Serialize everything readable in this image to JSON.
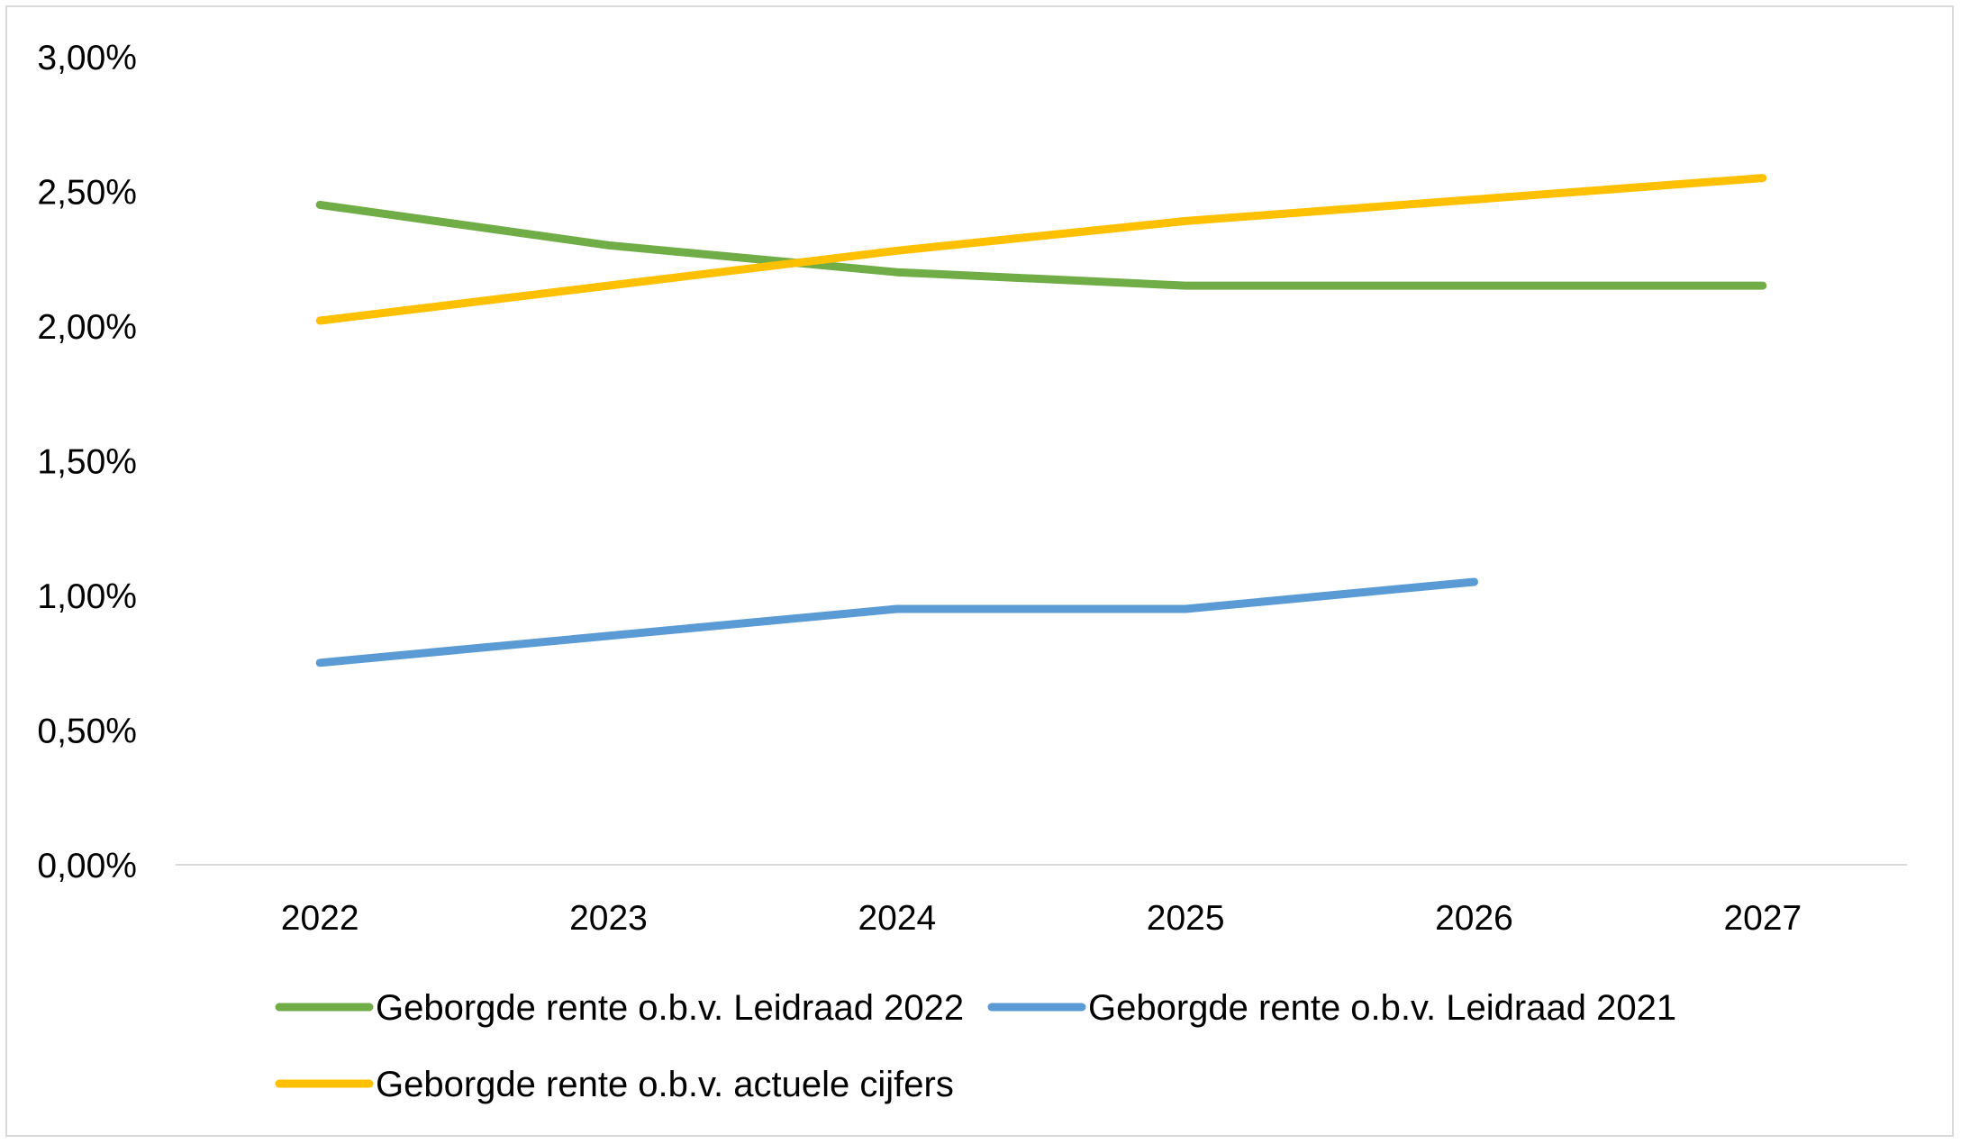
{
  "chart_data": {
    "type": "line",
    "title": "",
    "xlabel": "",
    "ylabel": "",
    "categories": [
      "2022",
      "2023",
      "2024",
      "2025",
      "2026",
      "2027"
    ],
    "ylim": [
      0,
      3.0
    ],
    "y_ticks": [
      0,
      0.5,
      1.0,
      1.5,
      2.0,
      2.5,
      3.0
    ],
    "y_tick_labels": [
      "0,00%",
      "0,50%",
      "1,00%",
      "1,50%",
      "2,00%",
      "2,50%",
      "3,00%"
    ],
    "grid": false,
    "legend_position": "bottom",
    "series": [
      {
        "name": "Geborgde rente o.b.v. Leidraad 2022",
        "color": "#70ad47",
        "values": [
          2.45,
          2.3,
          2.2,
          2.15,
          2.15,
          2.15
        ]
      },
      {
        "name": "Geborgde rente o.b.v. Leidraad 2021",
        "color": "#5b9bd5",
        "values": [
          0.75,
          0.85,
          0.95,
          0.95,
          1.05,
          null
        ]
      },
      {
        "name": "Geborgde rente o.b.v. actuele cijfers",
        "color": "#ffc000",
        "values": [
          2.02,
          2.15,
          2.28,
          2.39,
          2.47,
          2.55
        ]
      }
    ]
  }
}
